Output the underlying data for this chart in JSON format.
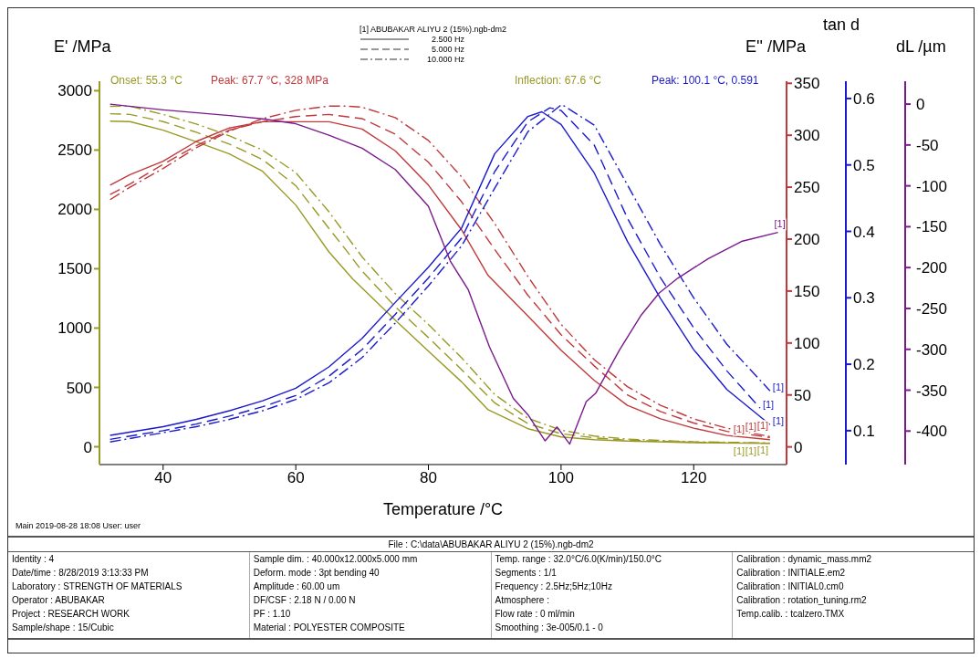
{
  "chart_data": [
    {
      "type": "line",
      "xlabel": "Temperature /°C",
      "ylabel": "E' /MPa",
      "y2label": "E'' /MPa",
      "y3label": "tan d",
      "legend_title": "[1] ABUBAKAR ALIYU 2 (15%).ngb-dm2",
      "xlim": [
        30.4,
        134
      ],
      "xticks": [
        40,
        60,
        80,
        100,
        120
      ],
      "ylim": [
        -150,
        3080
      ],
      "yticks": [
        0,
        500,
        1000,
        1500,
        2000,
        2500,
        3000
      ],
      "y2lim": [
        -17,
        352
      ],
      "y2ticks": [
        0,
        50,
        100,
        150,
        200,
        250,
        300,
        350
      ],
      "y3lim": [
        0.049,
        0.626
      ],
      "y3ticks": [
        0.1,
        0.2,
        0.3,
        0.4,
        0.5,
        0.6
      ],
      "marker": "none",
      "series": [
        {
          "name": "[1]",
          "color": "#999926",
          "line_style": "solid",
          "x": [
            32,
            35,
            40,
            45,
            50,
            55,
            60,
            65,
            68.6,
            75,
            80,
            85,
            89,
            95,
            100,
            105,
            110,
            120,
            131.5
          ],
          "values": [
            2744,
            2740,
            2668,
            2570,
            2467,
            2321,
            2037,
            1642,
            1413,
            1067,
            806,
            547,
            312,
            152,
            83,
            60,
            48,
            35,
            28
          ]
        },
        {
          "name": "[1]",
          "color": "#999926",
          "line_style": "dashed",
          "x": [
            32,
            35,
            40,
            45,
            50,
            55,
            60,
            65,
            67.6,
            70,
            75,
            80,
            85,
            90,
            95,
            100,
            105,
            110,
            120,
            131.5
          ],
          "values": [
            2806,
            2800,
            2740,
            2650,
            2550,
            2420,
            2200,
            1840,
            1656,
            1480,
            1180,
            920,
            650,
            370,
            195,
            110,
            75,
            55,
            38,
            30
          ]
        },
        {
          "name": "[1]",
          "color": "#999926",
          "line_style": "dashdot",
          "x": [
            32,
            35,
            40,
            45,
            50,
            55,
            60,
            65,
            70,
            75,
            80,
            85,
            90,
            95,
            100,
            105,
            110,
            120,
            131.5
          ],
          "values": [
            2868,
            2870,
            2800,
            2720,
            2620,
            2500,
            2310,
            1980,
            1600,
            1290,
            1030,
            750,
            440,
            240,
            140,
            90,
            65,
            42,
            32
          ]
        },
        {
          "name": "[1]",
          "color": "#c0393b",
          "line_style": "solid",
          "axis": "y2",
          "x": [
            32,
            35,
            40,
            45,
            50,
            55,
            60,
            65,
            70,
            75,
            80,
            85,
            89,
            95,
            100,
            105,
            110,
            115,
            120,
            125,
            131.5
          ],
          "values": [
            252,
            262,
            275,
            294,
            307,
            313,
            313,
            313,
            306,
            285,
            252,
            209,
            165,
            126,
            93,
            64,
            40,
            27,
            18,
            11,
            7
          ]
        },
        {
          "name": "[1]",
          "color": "#c0393b",
          "line_style": "dashed",
          "axis": "y2",
          "x": [
            32,
            35,
            40,
            45,
            50,
            55,
            60,
            65,
            70,
            75,
            80,
            85,
            90,
            95,
            100,
            105,
            110,
            115,
            120,
            125,
            131.5
          ],
          "values": [
            243,
            253,
            272,
            290,
            305,
            313,
            318,
            320,
            316,
            301,
            274,
            236,
            190,
            146,
            108,
            78,
            50,
            34,
            23,
            15,
            9
          ]
        },
        {
          "name": "[1]",
          "color": "#c0393b",
          "line_style": "dashdot",
          "axis": "y2",
          "x": [
            32,
            35,
            40,
            45,
            50,
            55,
            60,
            65,
            67.7,
            70,
            75,
            80,
            85,
            90,
            95,
            100,
            105,
            110,
            115,
            120,
            125,
            131.5
          ],
          "values": [
            238,
            250,
            268,
            288,
            304,
            316,
            324,
            328,
            328,
            327,
            317,
            295,
            260,
            215,
            164,
            118,
            84,
            58,
            40,
            27,
            18,
            10
          ]
        },
        {
          "name": "[1]",
          "color": "#1a1acc",
          "line_style": "solid",
          "axis": "y3",
          "x": [
            32,
            40,
            45,
            50,
            55,
            60,
            65,
            70,
            75,
            80,
            85,
            90,
            95,
            97.1,
            100,
            105,
            110,
            115,
            120,
            125,
            131.5
          ],
          "values": [
            0.093,
            0.106,
            0.117,
            0.13,
            0.145,
            0.164,
            0.196,
            0.239,
            0.293,
            0.346,
            0.405,
            0.517,
            0.573,
            0.58,
            0.561,
            0.488,
            0.385,
            0.299,
            0.222,
            0.162,
            0.109
          ]
        },
        {
          "name": "[1]",
          "color": "#1a1acc",
          "line_style": "dashed",
          "axis": "y3",
          "x": [
            32,
            40,
            45,
            50,
            55,
            60,
            65,
            70,
            75,
            80,
            85,
            90,
            95,
            98.3,
            100,
            105,
            110,
            115,
            120,
            125,
            130
          ],
          "values": [
            0.087,
            0.1,
            0.11,
            0.122,
            0.136,
            0.153,
            0.182,
            0.222,
            0.275,
            0.33,
            0.39,
            0.49,
            0.565,
            0.586,
            0.582,
            0.53,
            0.42,
            0.33,
            0.255,
            0.19,
            0.134
          ]
        },
        {
          "name": "[1]",
          "color": "#1a1acc",
          "line_style": "dashdot",
          "axis": "y3",
          "x": [
            32,
            40,
            45,
            50,
            55,
            60,
            65,
            70,
            75,
            80,
            85,
            90,
            95,
            100.1,
            105,
            110,
            115,
            120,
            125,
            131.5
          ],
          "values": [
            0.083,
            0.097,
            0.106,
            0.117,
            0.13,
            0.147,
            0.172,
            0.21,
            0.262,
            0.318,
            0.378,
            0.465,
            0.55,
            0.591,
            0.56,
            0.47,
            0.38,
            0.3,
            0.23,
            0.16
          ]
        }
      ],
      "annotations": [
        "Onset: 55.3 °C",
        "Peak: 67.7 °C, 328 MPa",
        "Inflection: 67.6 °C",
        "Peak: 100.1 °C, 0.591",
        "2.500 Hz",
        "5.000 Hz",
        "10.000 Hz",
        "Main   2019-08-28 18:08   User: user",
        "File :  C:\\data\\ABUBAKAR ALIYU 2 (15%).ngb-dm2",
        "Identity :  4",
        "Date/time :  8/28/2019 3:13:33 PM",
        "Laboratory :  STRENGTH OF MATERIALS",
        "Operator :  ABUBAKAR",
        "Project :  RESEARCH WORK",
        "Sample/shape :  15/Cubic",
        "Sample dim. :  40.000x12.000x5.000 mm",
        "Deform. mode :  3pt bending 40",
        "Amplitude :  60.00 um",
        "DF/CSF :  2.18 N / 0.00 N",
        "PF :  1.10",
        "Material :  POLYESTER COMPOSITE",
        "Temp. range :  32.0°C/6.0(K/min)/150.0°C",
        "Segments :  1/1",
        "Frequency :  2.5Hz;5Hz;10Hz",
        "Atmosphere :",
        "Flow rate :  0 ml/min",
        "Smoothing :  3e-005/0.1 - 0",
        "Calibration :  dynamic_mass.mm2",
        "Calibration :  INITIALE.em2",
        "Calibration :  INITIAL0.cm0",
        "Calibration :  rotation_tuning.rm2",
        "Temp.calib. :  tcalzero.TMX"
      ]
    },
    {
      "type": "line",
      "ylabel": "dL /µm",
      "tick_labels": "y",
      "xlim": [
        30.4,
        134
      ],
      "ylim": [
        -441,
        28
      ],
      "yticks": [
        -400,
        -350,
        -300,
        -250,
        -200,
        -150,
        -100,
        -50,
        0
      ],
      "marker": "none",
      "series": [
        {
          "name": "[1]",
          "color": "#7a1a8c",
          "line_style": "solid",
          "x": [
            32,
            40,
            50,
            55,
            60,
            65,
            70,
            75,
            80,
            83.3,
            86,
            89.2,
            92.8,
            95.1,
            97.6,
            99.4,
            101.3,
            103.8,
            105.2,
            108.8,
            112,
            114.8,
            117.6,
            122.2,
            127.2,
            132.7
          ],
          "values": [
            0,
            -7,
            -14,
            -18,
            -24,
            -38,
            -54,
            -80,
            -125,
            -192,
            -227,
            -297,
            -360,
            -381,
            -412,
            -395,
            -416,
            -364,
            -354,
            -301,
            -259,
            -231,
            -213,
            -189,
            -168,
            -157
          ]
        }
      ]
    }
  ]
}
